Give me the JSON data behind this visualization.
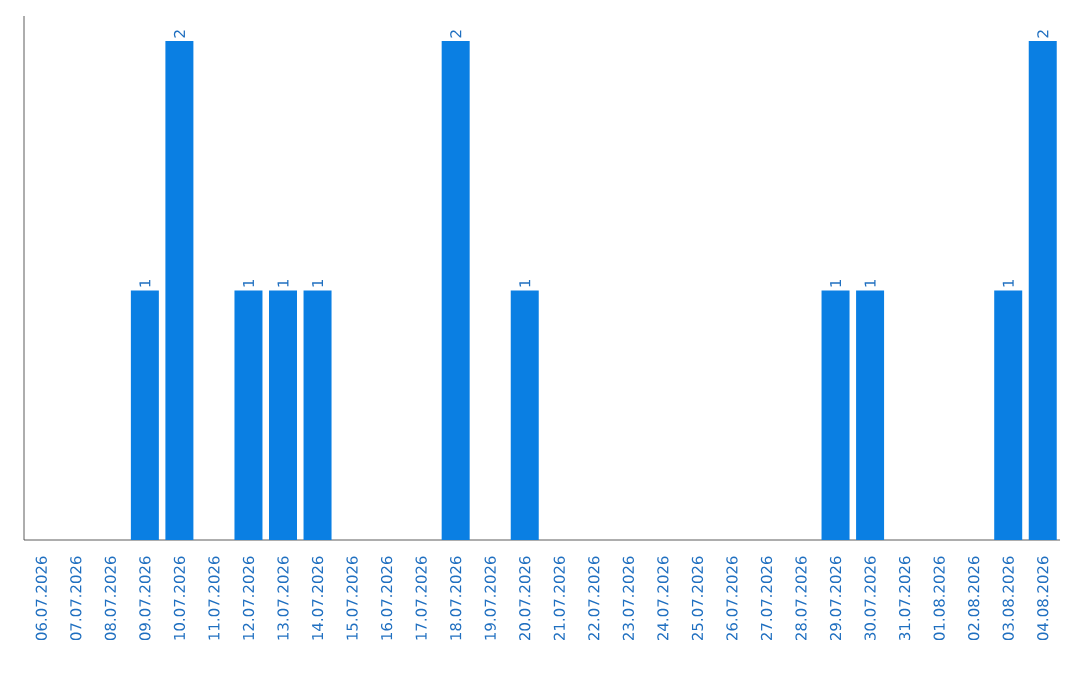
{
  "chart_data": {
    "type": "bar",
    "categories": [
      "06.07.2026",
      "07.07.2026",
      "08.07.2026",
      "09.07.2026",
      "10.07.2026",
      "11.07.2026",
      "12.07.2026",
      "13.07.2026",
      "14.07.2026",
      "15.07.2026",
      "16.07.2026",
      "17.07.2026",
      "18.07.2026",
      "19.07.2026",
      "20.07.2026",
      "21.07.2026",
      "22.07.2026",
      "23.07.2026",
      "24.07.2026",
      "25.07.2026",
      "26.07.2026",
      "27.07.2026",
      "28.07.2026",
      "29.07.2026",
      "30.07.2026",
      "31.07.2026",
      "01.08.2026",
      "02.08.2026",
      "03.08.2026",
      "04.08.2026"
    ],
    "values": [
      0,
      0,
      0,
      1,
      2,
      0,
      1,
      1,
      1,
      0,
      0,
      0,
      2,
      0,
      1,
      0,
      0,
      0,
      0,
      0,
      0,
      0,
      0,
      1,
      1,
      0,
      0,
      0,
      1,
      2
    ],
    "value_labels": [
      null,
      null,
      null,
      "1",
      "2",
      null,
      "1",
      "1",
      "1",
      null,
      null,
      null,
      "2",
      null,
      "1",
      null,
      null,
      null,
      null,
      null,
      null,
      null,
      null,
      "1",
      "1",
      null,
      null,
      null,
      "1",
      "2"
    ],
    "color": "#0a7fe3"
  }
}
